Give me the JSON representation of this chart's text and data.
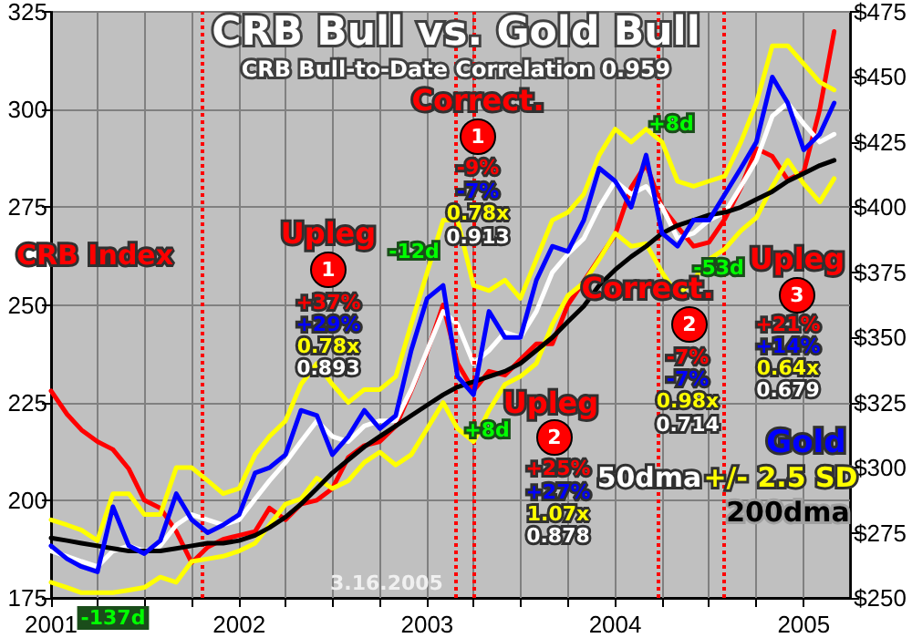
{
  "chart_data": {
    "type": "line",
    "title": "CRB Bull vs. Gold Bull",
    "subtitle": "CRB Bull-to-Date Correlation 0.959",
    "x": [
      "2001-01",
      "2001-02",
      "2001-03",
      "2001-04",
      "2001-05",
      "2001-06",
      "2001-07",
      "2001-08",
      "2001-09",
      "2001-10",
      "2001-11",
      "2001-12",
      "2002-01",
      "2002-02",
      "2002-03",
      "2002-04",
      "2002-05",
      "2002-06",
      "2002-07",
      "2002-08",
      "2002-09",
      "2002-10",
      "2002-11",
      "2002-12",
      "2003-01",
      "2003-02",
      "2003-03",
      "2003-04",
      "2003-05",
      "2003-06",
      "2003-07",
      "2003-08",
      "2003-09",
      "2003-10",
      "2003-11",
      "2003-12",
      "2004-01",
      "2004-02",
      "2004-03",
      "2004-04",
      "2004-05",
      "2004-06",
      "2004-07",
      "2004-08",
      "2004-09",
      "2004-10",
      "2004-11",
      "2004-12",
      "2005-01",
      "2005-02",
      "2005-03"
    ],
    "series": [
      {
        "name": "CRB Index",
        "color": "#ff0000",
        "values": [
          228,
          222,
          218,
          215,
          213,
          208,
          200,
          198,
          192,
          184,
          188,
          190,
          191,
          192,
          198,
          195,
          199,
          200,
          203,
          211,
          214,
          215,
          219,
          228,
          238,
          250,
          235,
          228,
          233,
          232,
          236,
          240,
          240,
          250,
          256,
          262,
          268,
          280,
          286,
          275,
          270,
          265,
          266,
          272,
          280,
          290,
          288,
          282,
          284,
          300,
          320
        ]
      },
      {
        "name": "50dma",
        "color": "#ffffff",
        "axis": "y2",
        "values": [
          268,
          266,
          264,
          262,
          268,
          270,
          268,
          270,
          278,
          282,
          280,
          278,
          280,
          288,
          295,
          302,
          310,
          318,
          312,
          310,
          316,
          318,
          318,
          330,
          345,
          360,
          355,
          340,
          345,
          352,
          350,
          360,
          375,
          382,
          388,
          400,
          410,
          405,
          408,
          400,
          388,
          390,
          395,
          398,
          408,
          418,
          435,
          440,
          432,
          425,
          428
        ]
      },
      {
        "name": "+/- 2.5 SD",
        "color": "#ffff00",
        "axis": "y2",
        "values": [
          280,
          278,
          276,
          272,
          290,
          290,
          282,
          282,
          300,
          300,
          295,
          290,
          292,
          305,
          312,
          318,
          332,
          340,
          332,
          325,
          330,
          330,
          335,
          355,
          375,
          395,
          395,
          370,
          368,
          372,
          365,
          380,
          395,
          398,
          405,
          420,
          430,
          425,
          430,
          425,
          410,
          408,
          410,
          412,
          425,
          440,
          462,
          462,
          455,
          448,
          445
        ]
      },
      {
        "color": "#ffff00",
        "axis": "y2",
        "values": [
          256,
          254,
          252,
          252,
          252,
          253,
          254,
          258,
          256,
          264,
          265,
          266,
          268,
          271,
          278,
          286,
          288,
          296,
          292,
          295,
          302,
          306,
          301,
          305,
          315,
          325,
          315,
          310,
          322,
          332,
          335,
          340,
          355,
          366,
          371,
          380,
          390,
          385,
          386,
          375,
          366,
          372,
          380,
          384,
          391,
          396,
          408,
          418,
          409,
          402,
          411
        ]
      },
      {
        "name": "200dma",
        "color": "#000000",
        "axis": "y2",
        "values": [
          273,
          272,
          271,
          270,
          269,
          268,
          268,
          268,
          269,
          270,
          271,
          271,
          272,
          274,
          277,
          281,
          286,
          292,
          298,
          303,
          308,
          312,
          316,
          320,
          324,
          328,
          331,
          333,
          335,
          337,
          340,
          345,
          350,
          356,
          362,
          370,
          376,
          381,
          385,
          390,
          393,
          395,
          397,
          398,
          400,
          403,
          406,
          410,
          413,
          416,
          418
        ]
      },
      {
        "name": "Gold",
        "color": "#0000ff",
        "axis": "y2",
        "values": [
          270,
          265,
          262,
          260,
          285,
          270,
          267,
          272,
          290,
          280,
          275,
          278,
          282,
          298,
          300,
          305,
          322,
          320,
          305,
          312,
          322,
          315,
          320,
          345,
          365,
          370,
          335,
          328,
          360,
          350,
          350,
          372,
          385,
          383,
          395,
          415,
          410,
          400,
          420,
          390,
          385,
          395,
          395,
          405,
          415,
          425,
          450,
          440,
          422,
          428,
          440
        ]
      }
    ],
    "xlim": [
      "2001-01",
      "2005-04"
    ],
    "xticks": [
      {
        "value": "2001",
        "label": "2001"
      },
      {
        "value": "2001-04",
        "label": null
      },
      {
        "value": "2001-07",
        "label": null
      },
      {
        "value": "2001-10",
        "label": null
      },
      {
        "value": "2002",
        "label": "2002"
      },
      {
        "value": "2002-04",
        "label": null
      },
      {
        "value": "2002-07",
        "label": null
      },
      {
        "value": "2002-10",
        "label": null
      },
      {
        "value": "2003",
        "label": "2003"
      },
      {
        "value": "2003-04",
        "label": null
      },
      {
        "value": "2003-07",
        "label": null
      },
      {
        "value": "2003-10",
        "label": null
      },
      {
        "value": "2004",
        "label": "2004"
      },
      {
        "value": "2004-04",
        "label": null
      },
      {
        "value": "2004-07",
        "label": null
      },
      {
        "value": "2004-10",
        "label": null
      },
      {
        "value": "2005",
        "label": "2005"
      }
    ],
    "ylim": [
      175,
      325
    ],
    "yticks": [
      175,
      200,
      225,
      250,
      275,
      300,
      325
    ],
    "y2lim": [
      250,
      475
    ],
    "y2ticks": [
      {
        "value": 250,
        "label": "$250"
      },
      {
        "value": 275,
        "label": "$275"
      },
      {
        "value": 300,
        "label": "$300"
      },
      {
        "value": 325,
        "label": "$325"
      },
      {
        "value": 350,
        "label": "$350"
      },
      {
        "value": 375,
        "label": "$375"
      },
      {
        "value": 400,
        "label": "$400"
      },
      {
        "value": 425,
        "label": "$425"
      },
      {
        "value": 450,
        "label": "$450"
      },
      {
        "value": 475,
        "label": "$475"
      }
    ],
    "ref_lines": [
      {
        "axis": "x",
        "value": "2001-10-20",
        "color": "#ff0000",
        "line_style": "dotted"
      },
      {
        "axis": "x",
        "value": "2003-02-25",
        "color": "#ff0000",
        "line_style": "dotted"
      },
      {
        "axis": "x",
        "value": "2003-04-01",
        "color": "#ff0000",
        "line_style": "dotted"
      },
      {
        "axis": "x",
        "value": "2004-03-25",
        "color": "#ff0000",
        "line_style": "dotted"
      },
      {
        "axis": "x",
        "value": "2004-07-28",
        "color": "#ff0000",
        "line_style": "dotted"
      }
    ],
    "annotations": [
      "Upleg",
      "1",
      "+37%",
      "+29%",
      "0.78x",
      "0.893",
      "Correct.",
      "1",
      "-9%",
      "-7%",
      "0.78x",
      "0.913",
      "-12d",
      "+8d",
      "+8d",
      "-53d",
      "Upleg",
      "2",
      "+25%",
      "+27%",
      "1.07x",
      "0.878",
      "Correct.",
      "2",
      "-7%",
      "-7%",
      "0.98x",
      "0.714",
      "Upleg",
      "3",
      "+21%",
      "+14%",
      "0.64x",
      "0.679",
      "3.16.2005",
      "-137d"
    ],
    "grid": true,
    "legend": "bottom right",
    "marker": "none",
    "line_style": "solid"
  }
}
